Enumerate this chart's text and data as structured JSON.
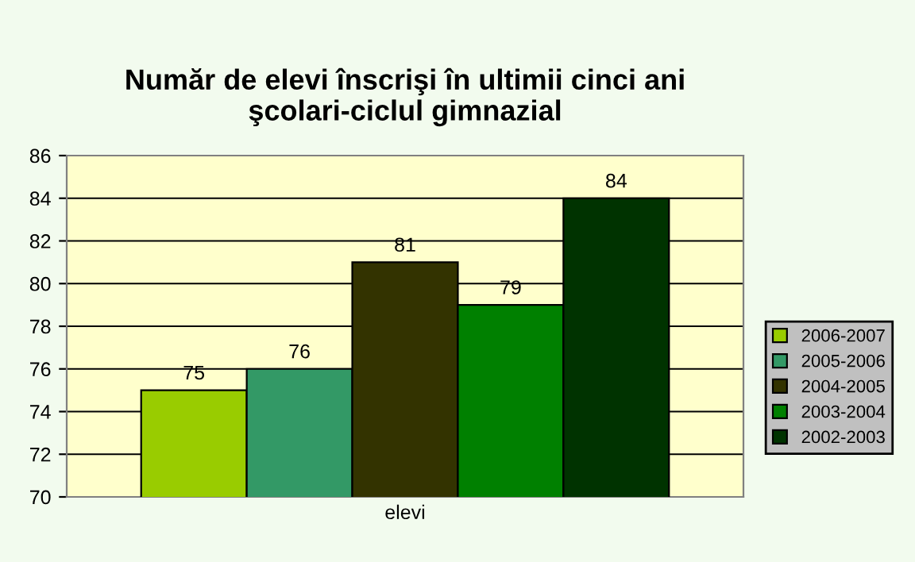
{
  "chart_data": {
    "type": "bar",
    "title": "Număr de elevi înscrişi în ultimii cinci ani\nşcolari-ciclul gimnazial",
    "categories": [
      "elevi"
    ],
    "series": [
      {
        "name": "2006-2007",
        "color": "#99cc00",
        "values": [
          75
        ]
      },
      {
        "name": "2005-2006",
        "color": "#339966",
        "values": [
          76
        ]
      },
      {
        "name": "2004-2005",
        "color": "#333300",
        "values": [
          81
        ]
      },
      {
        "name": "2003-2004",
        "color": "#008000",
        "values": [
          79
        ]
      },
      {
        "name": "2002-2003",
        "color": "#003300",
        "values": [
          84
        ]
      }
    ],
    "ylim": [
      70,
      86
    ],
    "yticks": [
      70,
      72,
      74,
      76,
      78,
      80,
      82,
      84,
      86
    ],
    "grid": "y",
    "legend": "right",
    "data_labels": true
  }
}
